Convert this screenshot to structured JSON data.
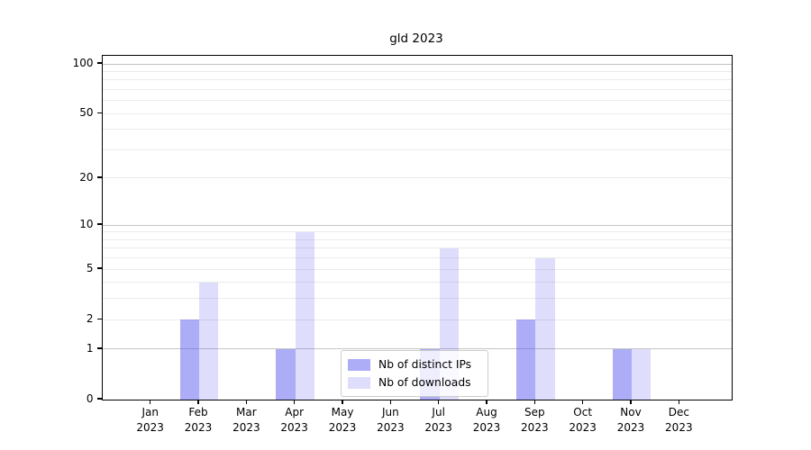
{
  "chart_data": {
    "type": "bar",
    "title": "gld 2023",
    "months": [
      "Jan",
      "Feb",
      "Mar",
      "Apr",
      "May",
      "Jun",
      "Jul",
      "Aug",
      "Sep",
      "Oct",
      "Nov",
      "Dec"
    ],
    "year": "2023",
    "categories": [
      "Jan 2023",
      "Feb 2023",
      "Mar 2023",
      "Apr 2023",
      "May 2023",
      "Jun 2023",
      "Jul 2023",
      "Aug 2023",
      "Sep 2023",
      "Oct 2023",
      "Nov 2023",
      "Dec 2023"
    ],
    "series": [
      {
        "name": "Nb of distinct IPs",
        "color": "#5a5af0",
        "alpha": 0.5,
        "values": [
          0,
          2,
          0,
          1,
          0,
          0,
          1,
          0,
          2,
          0,
          1,
          0
        ]
      },
      {
        "name": "Nb of downloads",
        "color": "#5a5af0",
        "alpha": 0.2,
        "values": [
          0,
          4,
          0,
          9,
          0,
          0,
          7,
          0,
          6,
          0,
          1,
          0
        ]
      }
    ],
    "xlabel": "",
    "ylabel": "",
    "y_axis": {
      "scale": "log1p",
      "tick_labels": [
        "100",
        "50",
        "20",
        "10",
        "5",
        "2",
        "1",
        "0"
      ],
      "tick_values": [
        100,
        50,
        20,
        10,
        5,
        2,
        1,
        0
      ],
      "major_gridlines": [
        1,
        10,
        100
      ],
      "minor_gridlines": [
        2,
        3,
        4,
        5,
        6,
        7,
        8,
        9,
        20,
        30,
        40,
        50,
        60,
        70,
        80,
        90
      ],
      "range": [
        0,
        112
      ]
    },
    "legend": {
      "position": "lower-center",
      "items": [
        "Nb of distinct IPs",
        "Nb of downloads"
      ]
    },
    "grid": true,
    "colors": {
      "major_grid": "#c4c4c4",
      "minor_grid": "#ebebeb",
      "spine": "#000000",
      "text": "#000000",
      "legend_border": "#cccccc"
    }
  }
}
